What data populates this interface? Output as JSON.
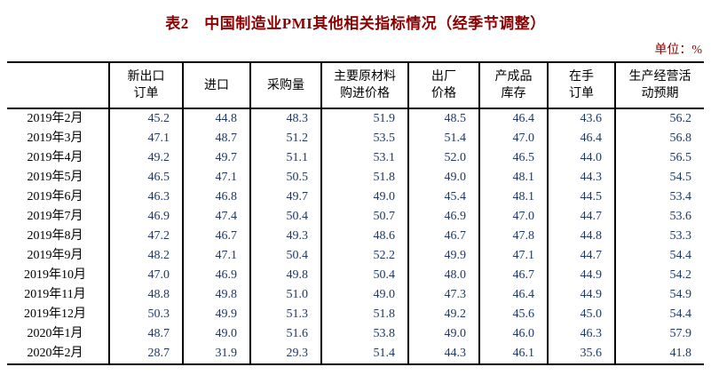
{
  "title": "表2　中国制造业PMI其他相关指标情况（经季节调整）",
  "unit_label": "单位：%",
  "colors": {
    "title_text": "#8B0000",
    "unit_text": "#8B0000",
    "header_text": "#000000",
    "row_label_text": "#000000",
    "data_text": "#1F3864",
    "border": "#000000",
    "background": "#ffffff"
  },
  "table": {
    "columns": [
      "",
      "新出口\n订单",
      "进口",
      "采购量",
      "主要原材料\n购进价格",
      "出厂\n价格",
      "产成品\n库存",
      "在手\n订单",
      "生产经营活\n动预期"
    ],
    "rows": [
      {
        "label": "2019年2月",
        "values": [
          "45.2",
          "44.8",
          "48.3",
          "51.9",
          "48.5",
          "46.4",
          "43.6",
          "56.2"
        ]
      },
      {
        "label": "2019年3月",
        "values": [
          "47.1",
          "48.7",
          "51.2",
          "53.5",
          "51.4",
          "47.0",
          "46.4",
          "56.8"
        ]
      },
      {
        "label": "2019年4月",
        "values": [
          "49.2",
          "49.7",
          "51.1",
          "53.1",
          "52.0",
          "46.5",
          "44.0",
          "56.5"
        ]
      },
      {
        "label": "2019年5月",
        "values": [
          "46.5",
          "47.1",
          "50.5",
          "51.8",
          "49.0",
          "48.1",
          "44.3",
          "54.5"
        ]
      },
      {
        "label": "2019年6月",
        "values": [
          "46.3",
          "46.8",
          "49.7",
          "49.0",
          "45.4",
          "48.1",
          "44.5",
          "53.4"
        ]
      },
      {
        "label": "2019年7月",
        "values": [
          "46.9",
          "47.4",
          "50.4",
          "50.7",
          "46.9",
          "47.0",
          "44.7",
          "53.6"
        ]
      },
      {
        "label": "2019年8月",
        "values": [
          "47.2",
          "46.7",
          "49.3",
          "48.6",
          "46.7",
          "47.8",
          "44.8",
          "53.3"
        ]
      },
      {
        "label": "2019年9月",
        "values": [
          "48.2",
          "47.1",
          "50.4",
          "52.2",
          "49.9",
          "47.1",
          "44.7",
          "54.4"
        ]
      },
      {
        "label": "2019年10月",
        "values": [
          "47.0",
          "46.9",
          "49.8",
          "50.4",
          "48.0",
          "46.7",
          "44.9",
          "54.2"
        ]
      },
      {
        "label": "2019年11月",
        "values": [
          "48.8",
          "49.8",
          "51.0",
          "49.0",
          "47.3",
          "46.4",
          "44.9",
          "54.9"
        ]
      },
      {
        "label": "2019年12月",
        "values": [
          "50.3",
          "49.9",
          "51.3",
          "51.8",
          "49.2",
          "45.6",
          "45.0",
          "54.4"
        ]
      },
      {
        "label": "2020年1月",
        "values": [
          "48.7",
          "49.0",
          "51.6",
          "53.8",
          "49.0",
          "46.0",
          "46.3",
          "57.9"
        ]
      },
      {
        "label": "2020年2月",
        "values": [
          "28.7",
          "31.9",
          "29.3",
          "51.4",
          "44.3",
          "46.1",
          "35.6",
          "41.8"
        ]
      }
    ]
  }
}
